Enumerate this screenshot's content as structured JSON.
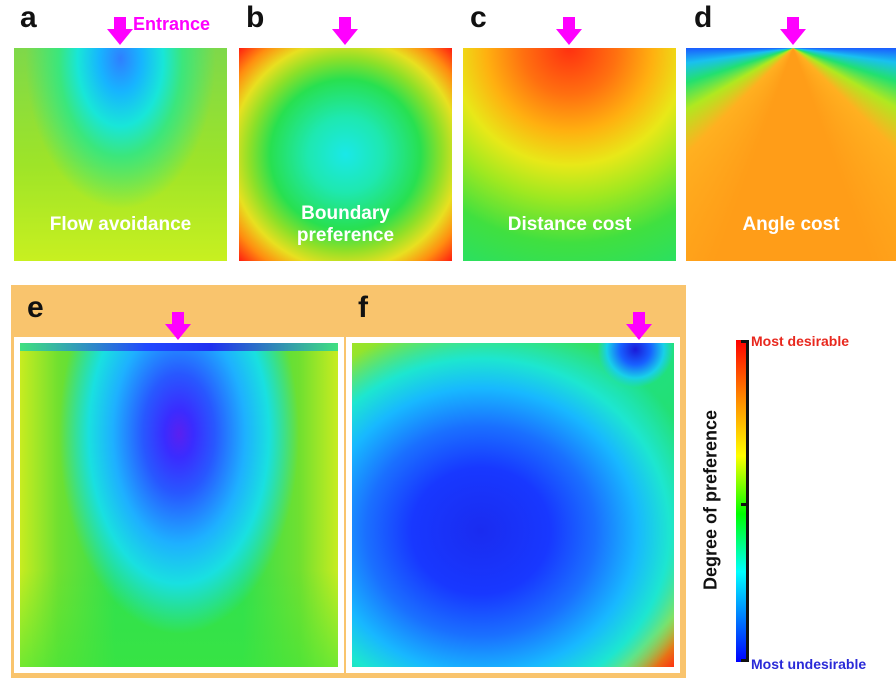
{
  "panels": {
    "a": {
      "letter": "a",
      "label": "Flow avoidance",
      "entrance_label": "Entrance"
    },
    "b": {
      "letter": "b",
      "label_line1": "Boundary",
      "label_line2": "preference"
    },
    "c": {
      "letter": "c",
      "label": "Distance cost"
    },
    "d": {
      "letter": "d",
      "label": "Angle cost"
    },
    "e": {
      "letter": "e"
    },
    "f": {
      "letter": "f"
    }
  },
  "colorbar": {
    "title": "Degree of preference",
    "top_label": "Most desirable",
    "bottom_label": "Most undesirable",
    "top_color": "#e8281e",
    "bottom_color": "#2a2ad8",
    "stops": [
      "#ff0000",
      "#ff8800",
      "#ffff00",
      "#00ff00",
      "#00ffff",
      "#0000ff"
    ]
  },
  "colors": {
    "arrow": "#ff00ff",
    "entrance_text": "#ff00ff",
    "panel_frame": "#f9c46d"
  }
}
